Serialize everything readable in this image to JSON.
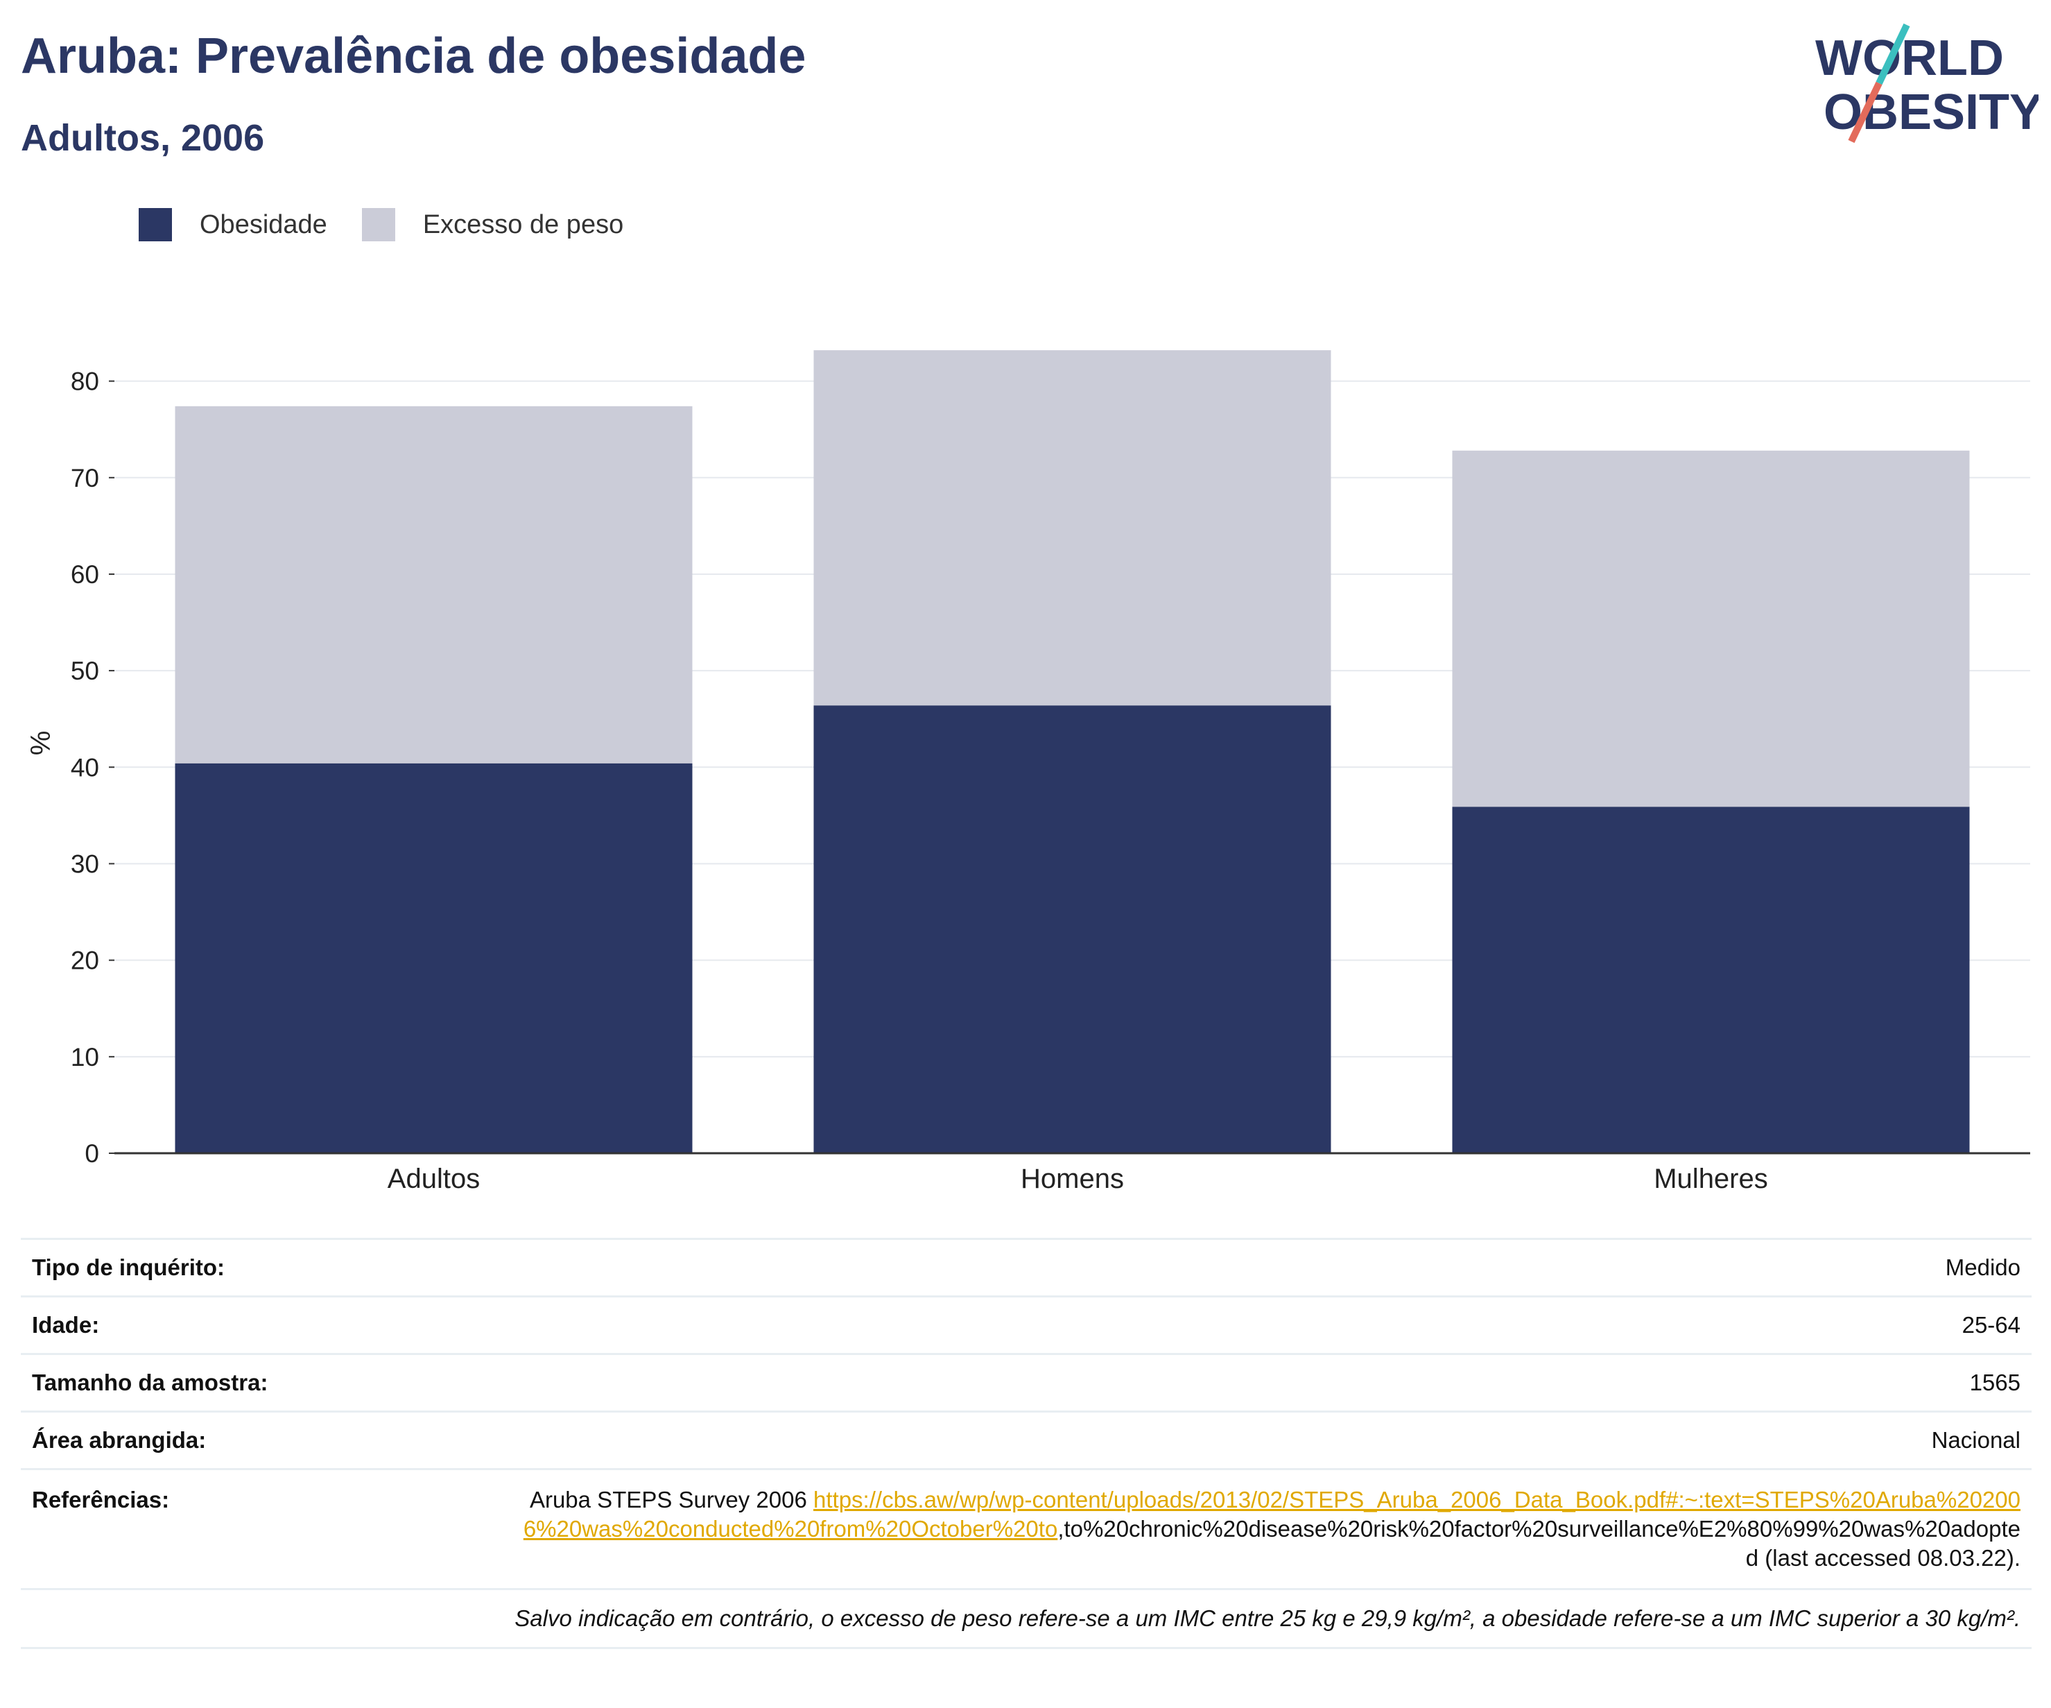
{
  "header": {
    "title": "Aruba: Prevalência de obesidade",
    "subtitle": "Adultos, 2006"
  },
  "logo": {
    "line1": "WORLD",
    "line2": "OBESITY",
    "icon": "slash-logo-icon"
  },
  "colors": {
    "obesity": "#2b3764",
    "overweight": "#cbccd8",
    "accent_teal": "#3bbfbf",
    "accent_coral": "#e36b5b"
  },
  "legend": [
    {
      "label": "Obesidade",
      "color": "#2b3764"
    },
    {
      "label": "Excesso de peso",
      "color": "#cbccd8"
    }
  ],
  "chart_data": {
    "type": "bar",
    "stacked": true,
    "categories": [
      "Adultos",
      "Homens",
      "Mulheres"
    ],
    "series": [
      {
        "name": "Obesidade",
        "values": [
          40.4,
          46.4,
          35.9
        ]
      },
      {
        "name": "Excesso de peso",
        "values": [
          37.0,
          36.8,
          36.9
        ]
      }
    ],
    "ylabel": "%",
    "ylim": [
      0,
      85
    ],
    "yticks": [
      0,
      10,
      20,
      30,
      40,
      50,
      60,
      70,
      80
    ],
    "grid": true,
    "legend_position": "top-left"
  },
  "info": {
    "survey_type": {
      "label": "Tipo de inquérito:",
      "value": "Medido"
    },
    "age": {
      "label": "Idade:",
      "value": "25-64"
    },
    "sample_size": {
      "label": "Tamanho da amostra:",
      "value": "1565"
    },
    "area": {
      "label": "Área abrangida:",
      "value": "Nacional"
    },
    "references": {
      "label": "Referências:",
      "prefix": "Aruba STEPS Survey 2006 ",
      "link": "https://cbs.aw/wp/wp-content/uploads/2013/02/STEPS_Aruba_2006_Data_Book.pdf#:~:text=STEPS%20Aruba%202006%20was%20conducted%20from%20October%20to",
      "suffix": ",to%20chronic%20disease%20risk%20factor%20surveillance%E2%80%99%20was%20adopted (last accessed 08.03.22)."
    },
    "note": "Salvo indicação em contrário, o excesso de peso refere-se a um IMC entre 25 kg e 29,9 kg/m², a obesidade refere-se a um IMC superior a 30 kg/m²."
  }
}
